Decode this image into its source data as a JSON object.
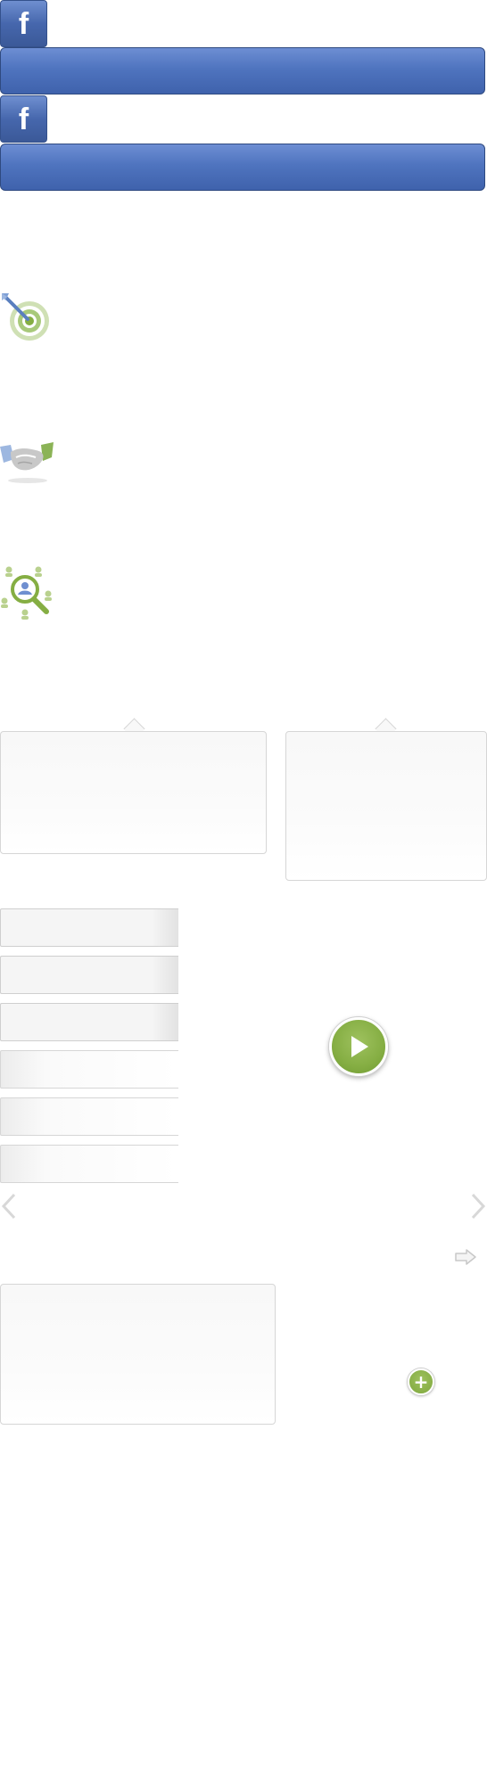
{
  "facebook": {
    "logo_letter": "f",
    "rows": [
      {
        "logo": "facebook-logo-icon",
        "bar": "facebook-button-bar"
      },
      {
        "logo": "facebook-logo-icon",
        "bar": "facebook-button-bar"
      }
    ]
  },
  "feature_icons": [
    "target-dart-icon",
    "handshake-icon",
    "people-search-icon"
  ],
  "tabs": {
    "active_count": 3,
    "inactive_count": 3
  },
  "controls": {
    "play_icon": "play-icon",
    "prev_icon": "chevron-left-icon",
    "next_icon": "chevron-right-icon",
    "forward_icon": "arrow-right-icon",
    "add_icon": "plus-icon",
    "add_symbol": "+"
  },
  "colors": {
    "facebook_blue": "#3b5998",
    "accent_green": "#85ae43",
    "panel_border": "#d6d6d6"
  }
}
